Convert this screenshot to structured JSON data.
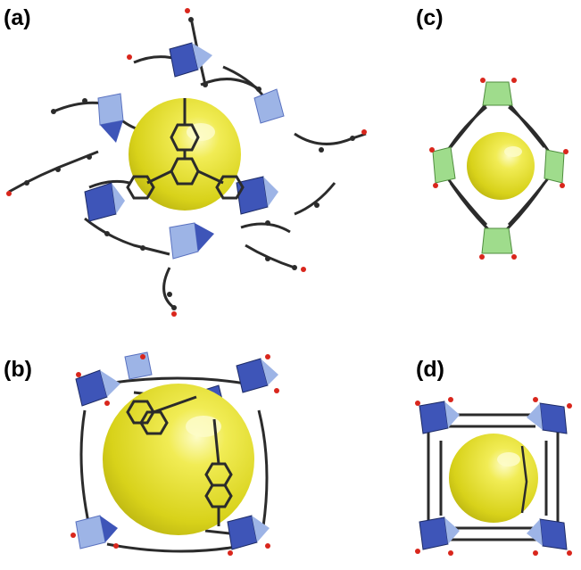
{
  "panels": [
    {
      "id": "a",
      "label": "(a)"
    },
    {
      "id": "b",
      "label": "(b)"
    },
    {
      "id": "c",
      "label": "(c)"
    },
    {
      "id": "d",
      "label": "(d)"
    }
  ],
  "colors": {
    "pore_sphere": "#e6e02a",
    "pore_highlight": "#fbfaa8",
    "polyhedron_dark": "#3e55b8",
    "polyhedron_light": "#9db4e6",
    "polyhedron_green": "#9fdc8c",
    "linker": "#2b2b2b",
    "oxygen": "#d9261c"
  }
}
